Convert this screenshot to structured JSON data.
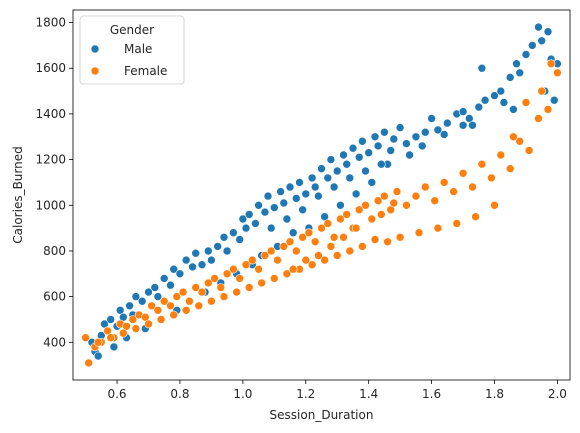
{
  "chart_data": {
    "type": "scatter",
    "title": "",
    "xlabel": "Session_Duration",
    "ylabel": "Calories_Burned",
    "xlim": [
      0.46,
      2.04
    ],
    "ylim": [
      235,
      1855
    ],
    "xticks": [
      0.6,
      0.8,
      1.0,
      1.2,
      1.4,
      1.6,
      1.8,
      2.0
    ],
    "xtick_labels": [
      "0.6",
      "0.8",
      "1.0",
      "1.2",
      "1.4",
      "1.6",
      "1.8",
      "2.0"
    ],
    "yticks": [
      400,
      600,
      800,
      1000,
      1200,
      1400,
      1600,
      1800
    ],
    "ytick_labels": [
      "400",
      "600",
      "800",
      "1000",
      "1200",
      "1400",
      "1600",
      "1800"
    ],
    "grid": false,
    "legend": {
      "title": "Gender",
      "placement": "top-left"
    },
    "series": [
      {
        "name": "Male",
        "color": "#1f77b4",
        "x": [
          0.52,
          0.53,
          0.55,
          0.56,
          0.57,
          0.58,
          0.6,
          0.61,
          0.62,
          0.64,
          0.65,
          0.66,
          0.68,
          0.7,
          0.72,
          0.73,
          0.75,
          0.77,
          0.78,
          0.8,
          0.82,
          0.84,
          0.85,
          0.87,
          0.89,
          0.9,
          0.92,
          0.94,
          0.95,
          0.97,
          0.99,
          1.0,
          1.01,
          1.02,
          1.04,
          1.05,
          1.07,
          1.08,
          1.1,
          1.12,
          1.13,
          1.15,
          1.17,
          1.18,
          1.2,
          1.22,
          1.23,
          1.25,
          1.27,
          1.28,
          1.3,
          1.32,
          1.33,
          1.35,
          1.37,
          1.38,
          1.4,
          1.42,
          1.43,
          1.45,
          1.47,
          1.48,
          1.5,
          1.52,
          1.55,
          1.58,
          1.6,
          1.62,
          1.65,
          1.68,
          1.7,
          1.72,
          1.75,
          1.77,
          1.8,
          1.82,
          1.85,
          1.87,
          1.88,
          1.9,
          1.92,
          1.94,
          1.95,
          1.97,
          1.98,
          2.0,
          1.96,
          1.99,
          1.86,
          1.83,
          1.76,
          1.7,
          1.64,
          1.57,
          1.53,
          1.46,
          1.41,
          1.36,
          1.31,
          1.26,
          1.21,
          1.16,
          1.11,
          1.06,
          1.03,
          0.98,
          0.93,
          0.88,
          0.83,
          0.79,
          0.74,
          0.69,
          0.63,
          0.59,
          0.54,
          1.34,
          1.29,
          1.24,
          1.39,
          1.44,
          1.19,
          1.14,
          1.09,
          1.73
        ],
        "y": [
          400,
          360,
          430,
          480,
          450,
          500,
          470,
          540,
          510,
          560,
          520,
          600,
          580,
          620,
          640,
          600,
          680,
          650,
          720,
          700,
          760,
          730,
          790,
          740,
          800,
          760,
          820,
          860,
          800,
          880,
          850,
          940,
          900,
          960,
          920,
          1000,
          970,
          1040,
          990,
          1060,
          1010,
          1080,
          1030,
          1100,
          1050,
          1120,
          1080,
          1160,
          1120,
          1200,
          1150,
          1220,
          1180,
          1250,
          1210,
          1280,
          1230,
          1300,
          1260,
          1320,
          1240,
          1290,
          1340,
          1270,
          1300,
          1320,
          1380,
          1330,
          1360,
          1400,
          1410,
          1380,
          1430,
          1460,
          1480,
          1500,
          1560,
          1620,
          1580,
          1660,
          1700,
          1780,
          1720,
          1760,
          1640,
          1620,
          1500,
          1460,
          1420,
          1450,
          1600,
          1350,
          1310,
          1260,
          1220,
          1180,
          1100,
          1050,
          1000,
          950,
          900,
          880,
          820,
          780,
          740,
          700,
          660,
          620,
          580,
          540,
          500,
          460,
          420,
          380,
          340,
          1120,
          1080,
          1040,
          1150,
          1180,
          980,
          940,
          900,
          1350
        ]
      },
      {
        "name": "Female",
        "color": "#ff7f0e",
        "x": [
          0.5,
          0.51,
          0.53,
          0.55,
          0.57,
          0.59,
          0.61,
          0.63,
          0.65,
          0.67,
          0.69,
          0.71,
          0.73,
          0.75,
          0.77,
          0.79,
          0.81,
          0.83,
          0.85,
          0.87,
          0.89,
          0.91,
          0.93,
          0.95,
          0.97,
          0.99,
          1.01,
          1.03,
          1.05,
          1.07,
          1.09,
          1.11,
          1.13,
          1.15,
          1.17,
          1.19,
          1.21,
          1.23,
          1.25,
          1.27,
          1.29,
          1.31,
          1.33,
          1.35,
          1.37,
          1.39,
          1.41,
          1.43,
          1.45,
          1.47,
          1.49,
          1.52,
          1.55,
          1.58,
          1.61,
          1.64,
          1.67,
          1.7,
          1.73,
          1.76,
          1.79,
          1.82,
          1.85,
          1.88,
          1.91,
          1.94,
          1.97,
          2.0,
          1.98,
          1.95,
          1.9,
          1.86,
          1.8,
          1.74,
          1.68,
          1.62,
          1.56,
          1.5,
          1.46,
          1.42,
          1.38,
          1.34,
          1.3,
          1.26,
          1.22,
          1.18,
          1.14,
          1.1,
          1.06,
          1.02,
          0.98,
          0.94,
          0.9,
          0.86,
          0.82,
          0.78,
          0.74,
          0.7,
          0.66,
          0.62,
          0.58,
          0.54,
          1.36,
          1.32,
          1.28,
          1.24,
          1.44,
          1.48,
          1.2,
          1.16
        ],
        "y": [
          420,
          310,
          380,
          400,
          450,
          420,
          480,
          470,
          500,
          520,
          510,
          560,
          540,
          580,
          560,
          600,
          620,
          580,
          640,
          620,
          660,
          680,
          640,
          700,
          720,
          680,
          740,
          760,
          720,
          780,
          800,
          760,
          820,
          840,
          800,
          860,
          880,
          840,
          900,
          920,
          860,
          940,
          960,
          900,
          980,
          1000,
          940,
          1020,
          1040,
          980,
          1060,
          1000,
          1040,
          1080,
          1020,
          1100,
          1060,
          1140,
          1080,
          1180,
          1120,
          1220,
          1160,
          1280,
          1240,
          1380,
          1420,
          1580,
          1620,
          1500,
          1450,
          1300,
          1000,
          950,
          920,
          900,
          880,
          860,
          840,
          850,
          820,
          800,
          780,
          760,
          740,
          720,
          700,
          680,
          660,
          640,
          620,
          600,
          580,
          560,
          540,
          520,
          500,
          480,
          460,
          440,
          420,
          400,
          900,
          860,
          820,
          780,
          960,
          1010,
          760,
          720
        ]
      }
    ]
  }
}
